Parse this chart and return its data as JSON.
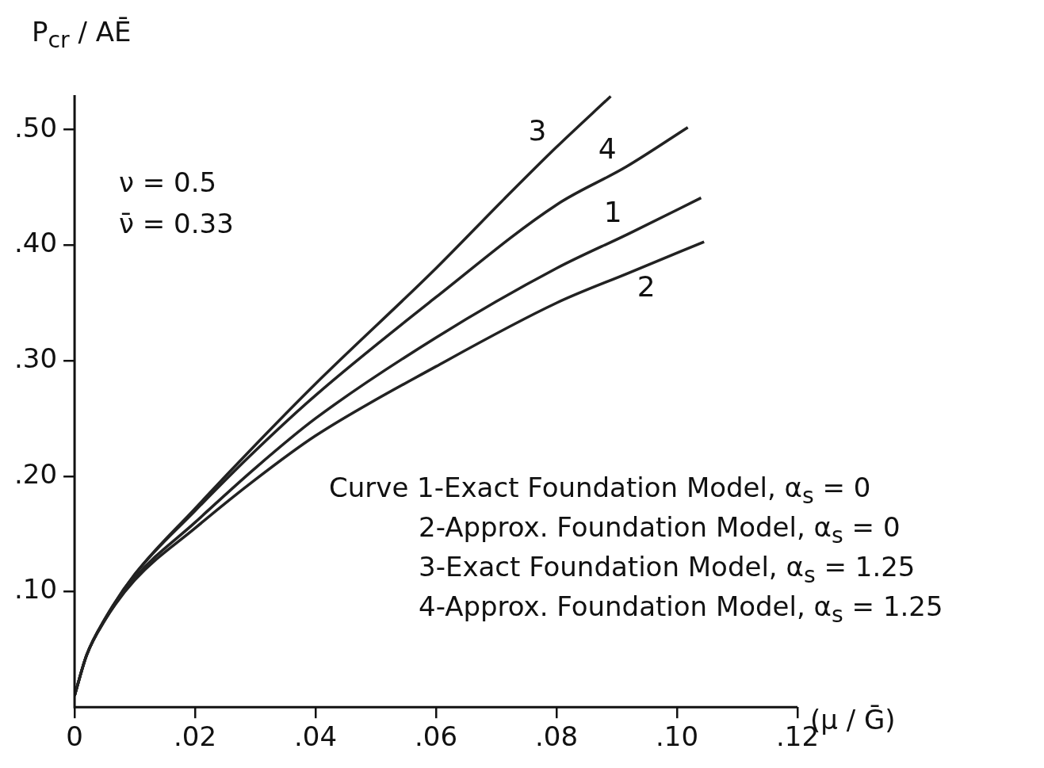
{
  "chart_data": {
    "type": "line",
    "ylabel": "P$_{cr}$ / AĒ",
    "xlabel": "(μ / Ḡ)",
    "xlim": [
      0,
      0.12
    ],
    "xticks": [
      {
        "value": 0,
        "label": "0"
      },
      {
        "value": 0.02,
        "label": ".02"
      },
      {
        "value": 0.04,
        "label": ".04"
      },
      {
        "value": 0.06,
        "label": ".06"
      },
      {
        "value": 0.08,
        "label": ".08"
      },
      {
        "value": 0.1,
        "label": ".10"
      },
      {
        "value": 0.12,
        "label": ".12"
      }
    ],
    "ylim": [
      0,
      0.53
    ],
    "yticks": [
      {
        "value": 0.1,
        "label": ".10"
      },
      {
        "value": 0.2,
        "label": ".20"
      },
      {
        "value": 0.3,
        "label": ".30"
      },
      {
        "value": 0.4,
        "label": ".40"
      },
      {
        "value": 0.5,
        "label": ".50"
      }
    ],
    "series": [
      {
        "name": "1",
        "color": "#222222",
        "x": [
          0,
          0.002,
          0.005,
          0.01,
          0.02,
          0.03,
          0.04,
          0.06,
          0.08,
          0.092,
          0.104
        ],
        "values": [
          0.01,
          0.045,
          0.075,
          0.112,
          0.16,
          0.207,
          0.25,
          0.32,
          0.38,
          0.41,
          0.441
        ]
      },
      {
        "name": "2",
        "color": "#222222",
        "x": [
          0,
          0.002,
          0.005,
          0.01,
          0.02,
          0.03,
          0.04,
          0.06,
          0.08,
          0.092,
          0.1045
        ],
        "values": [
          0.01,
          0.045,
          0.075,
          0.11,
          0.155,
          0.197,
          0.235,
          0.295,
          0.35,
          0.376,
          0.403
        ]
      },
      {
        "name": "3",
        "color": "#222222",
        "x": [
          0,
          0.002,
          0.005,
          0.01,
          0.02,
          0.03,
          0.04,
          0.06,
          0.0713,
          0.08,
          0.089
        ],
        "values": [
          0.01,
          0.045,
          0.076,
          0.115,
          0.172,
          0.227,
          0.28,
          0.38,
          0.44,
          0.485,
          0.529
        ]
      },
      {
        "name": "4",
        "color": "#222222",
        "x": [
          0,
          0.002,
          0.005,
          0.01,
          0.02,
          0.03,
          0.04,
          0.06,
          0.08,
          0.0916,
          0.1018
        ],
        "values": [
          0.01,
          0.045,
          0.076,
          0.115,
          0.17,
          0.222,
          0.27,
          0.355,
          0.435,
          0.468,
          0.502
        ]
      }
    ],
    "annotations": [
      "ν = 0.5",
      "ν̄ = 0.33",
      "Curve 1-Exact Foundation Model, α$_{s}$ = 0",
      "2-Approx. Foundation Model, α$_{s}$ = 0",
      "3-Exact Foundation Model, α$_{s}$ = 1.25",
      "4-Approx. Foundation Model, α$_{s}$ = 1.25"
    ]
  }
}
